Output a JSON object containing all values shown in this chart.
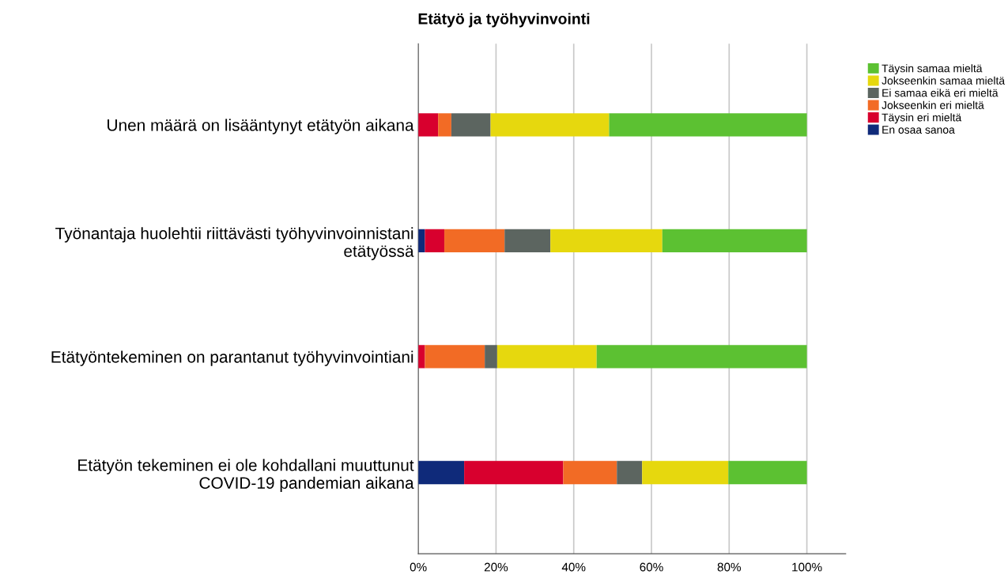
{
  "chart_data": {
    "type": "bar",
    "orientation": "horizontal",
    "stacked": true,
    "title": "Etätyö ja työhyvinvointi",
    "categories": [
      "Unen määrä on lisääntynyt etätyön aikana",
      "Työnantaja huolehtii riittävästi työhyvinvoinnistani\netätyössä",
      "Etätyöntekeminen on parantanut työhyvinvointiani",
      "Etätyön tekeminen ei ole kohdallani muuttunut\nCOVID-19 pandemian aikana"
    ],
    "series": [
      {
        "name": "En osaa sanoa",
        "color": "#0f2a7a",
        "values": [
          0,
          1.7,
          0,
          11.8
        ]
      },
      {
        "name": "Täysin eri mieltä",
        "color": "#d8002e",
        "values": [
          5.1,
          5.0,
          1.7,
          25.5
        ]
      },
      {
        "name": "Jokseenkin eri mieltä",
        "color": "#f26b25",
        "values": [
          3.4,
          15.5,
          15.4,
          13.8
        ]
      },
      {
        "name": "Ei samaa eikä eri mieltä",
        "color": "#5c6560",
        "values": [
          10.1,
          11.8,
          3.2,
          6.5
        ]
      },
      {
        "name": "Jokseenkin samaa mieltä",
        "color": "#e6d80e",
        "values": [
          30.5,
          28.8,
          25.6,
          22.2
        ]
      },
      {
        "name": "Täysin samaa mieltä",
        "color": "#5cc132",
        "values": [
          50.9,
          37.2,
          54.1,
          20.2
        ]
      }
    ],
    "xlim": [
      0,
      110
    ],
    "xticks": [
      {
        "value": 0,
        "label": "0%"
      },
      {
        "value": 20,
        "label": "20%"
      },
      {
        "value": 40,
        "label": "40%"
      },
      {
        "value": 60,
        "label": "60%"
      },
      {
        "value": 80,
        "label": "80%"
      },
      {
        "value": 100,
        "label": "100%"
      }
    ],
    "grid": "x",
    "legend": "top right"
  }
}
